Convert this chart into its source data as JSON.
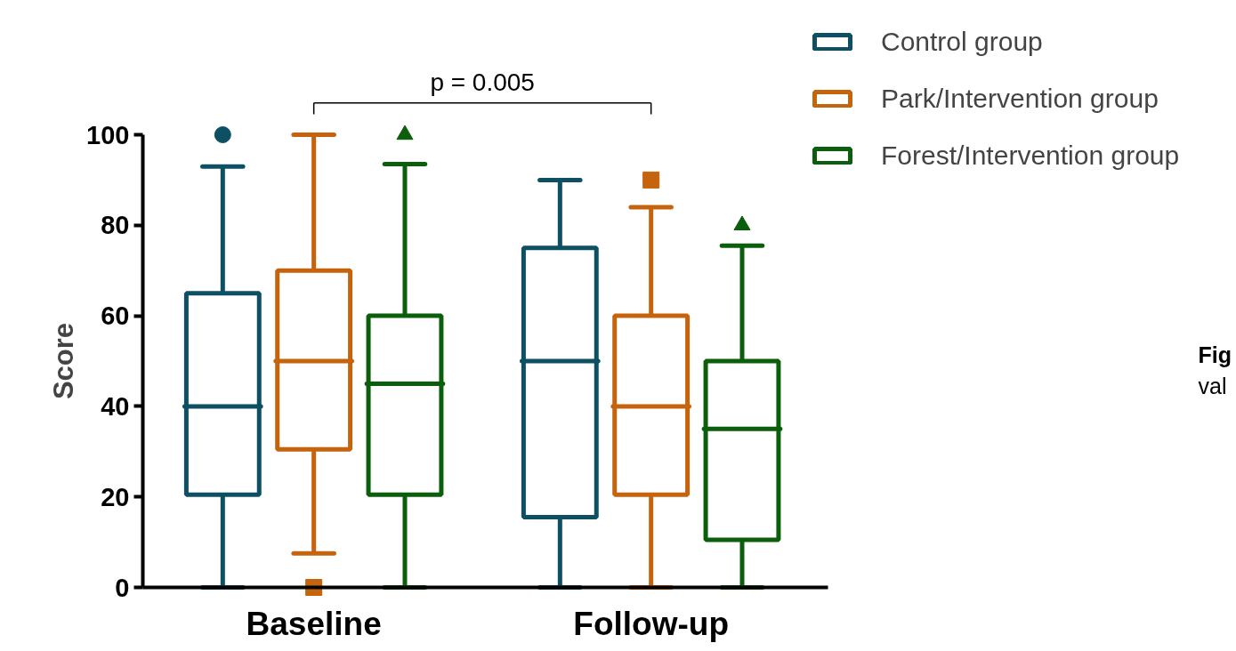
{
  "chart_data": {
    "type": "box",
    "ylabel": "Score",
    "categories": [
      "Baseline",
      "Follow-up"
    ],
    "ylim": [
      0,
      100
    ],
    "yticks": [
      0,
      20,
      40,
      60,
      80,
      100
    ],
    "grid": false,
    "legend": "top right",
    "series": [
      {
        "name": "Control group",
        "color": "#0d4f63",
        "marker": "circle",
        "boxes": [
          {
            "low": 0,
            "q1": 20.5,
            "median": 40,
            "q3": 65,
            "high": 93,
            "outliers": [
              100
            ]
          },
          {
            "low": 0,
            "q1": 15.5,
            "median": 50,
            "q3": 75,
            "high": 90
          }
        ]
      },
      {
        "name": "Park/Intervention group",
        "color": "#c5640c",
        "marker": "square",
        "boxes": [
          {
            "low": 7.5,
            "q1": 30.5,
            "median": 50,
            "q3": 70,
            "high": 100,
            "outliers": [
              0
            ]
          },
          {
            "low": 0,
            "q1": 20.5,
            "median": 40,
            "q3": 60,
            "high": 84,
            "outliers": [
              90
            ]
          }
        ]
      },
      {
        "name": "Forest/Intervention group",
        "color": "#0b5e0b",
        "marker": "triangle",
        "boxes": [
          {
            "low": 0,
            "q1": 20.5,
            "median": 45,
            "q3": 60,
            "high": 93.5,
            "outliers": [
              100
            ]
          },
          {
            "low": 0,
            "q1": 10.5,
            "median": 35,
            "q3": 50,
            "high": 75.5,
            "outliers": [
              80
            ]
          }
        ]
      }
    ],
    "annotations": [
      "p = 0.005",
      "Fig",
      "val"
    ]
  }
}
